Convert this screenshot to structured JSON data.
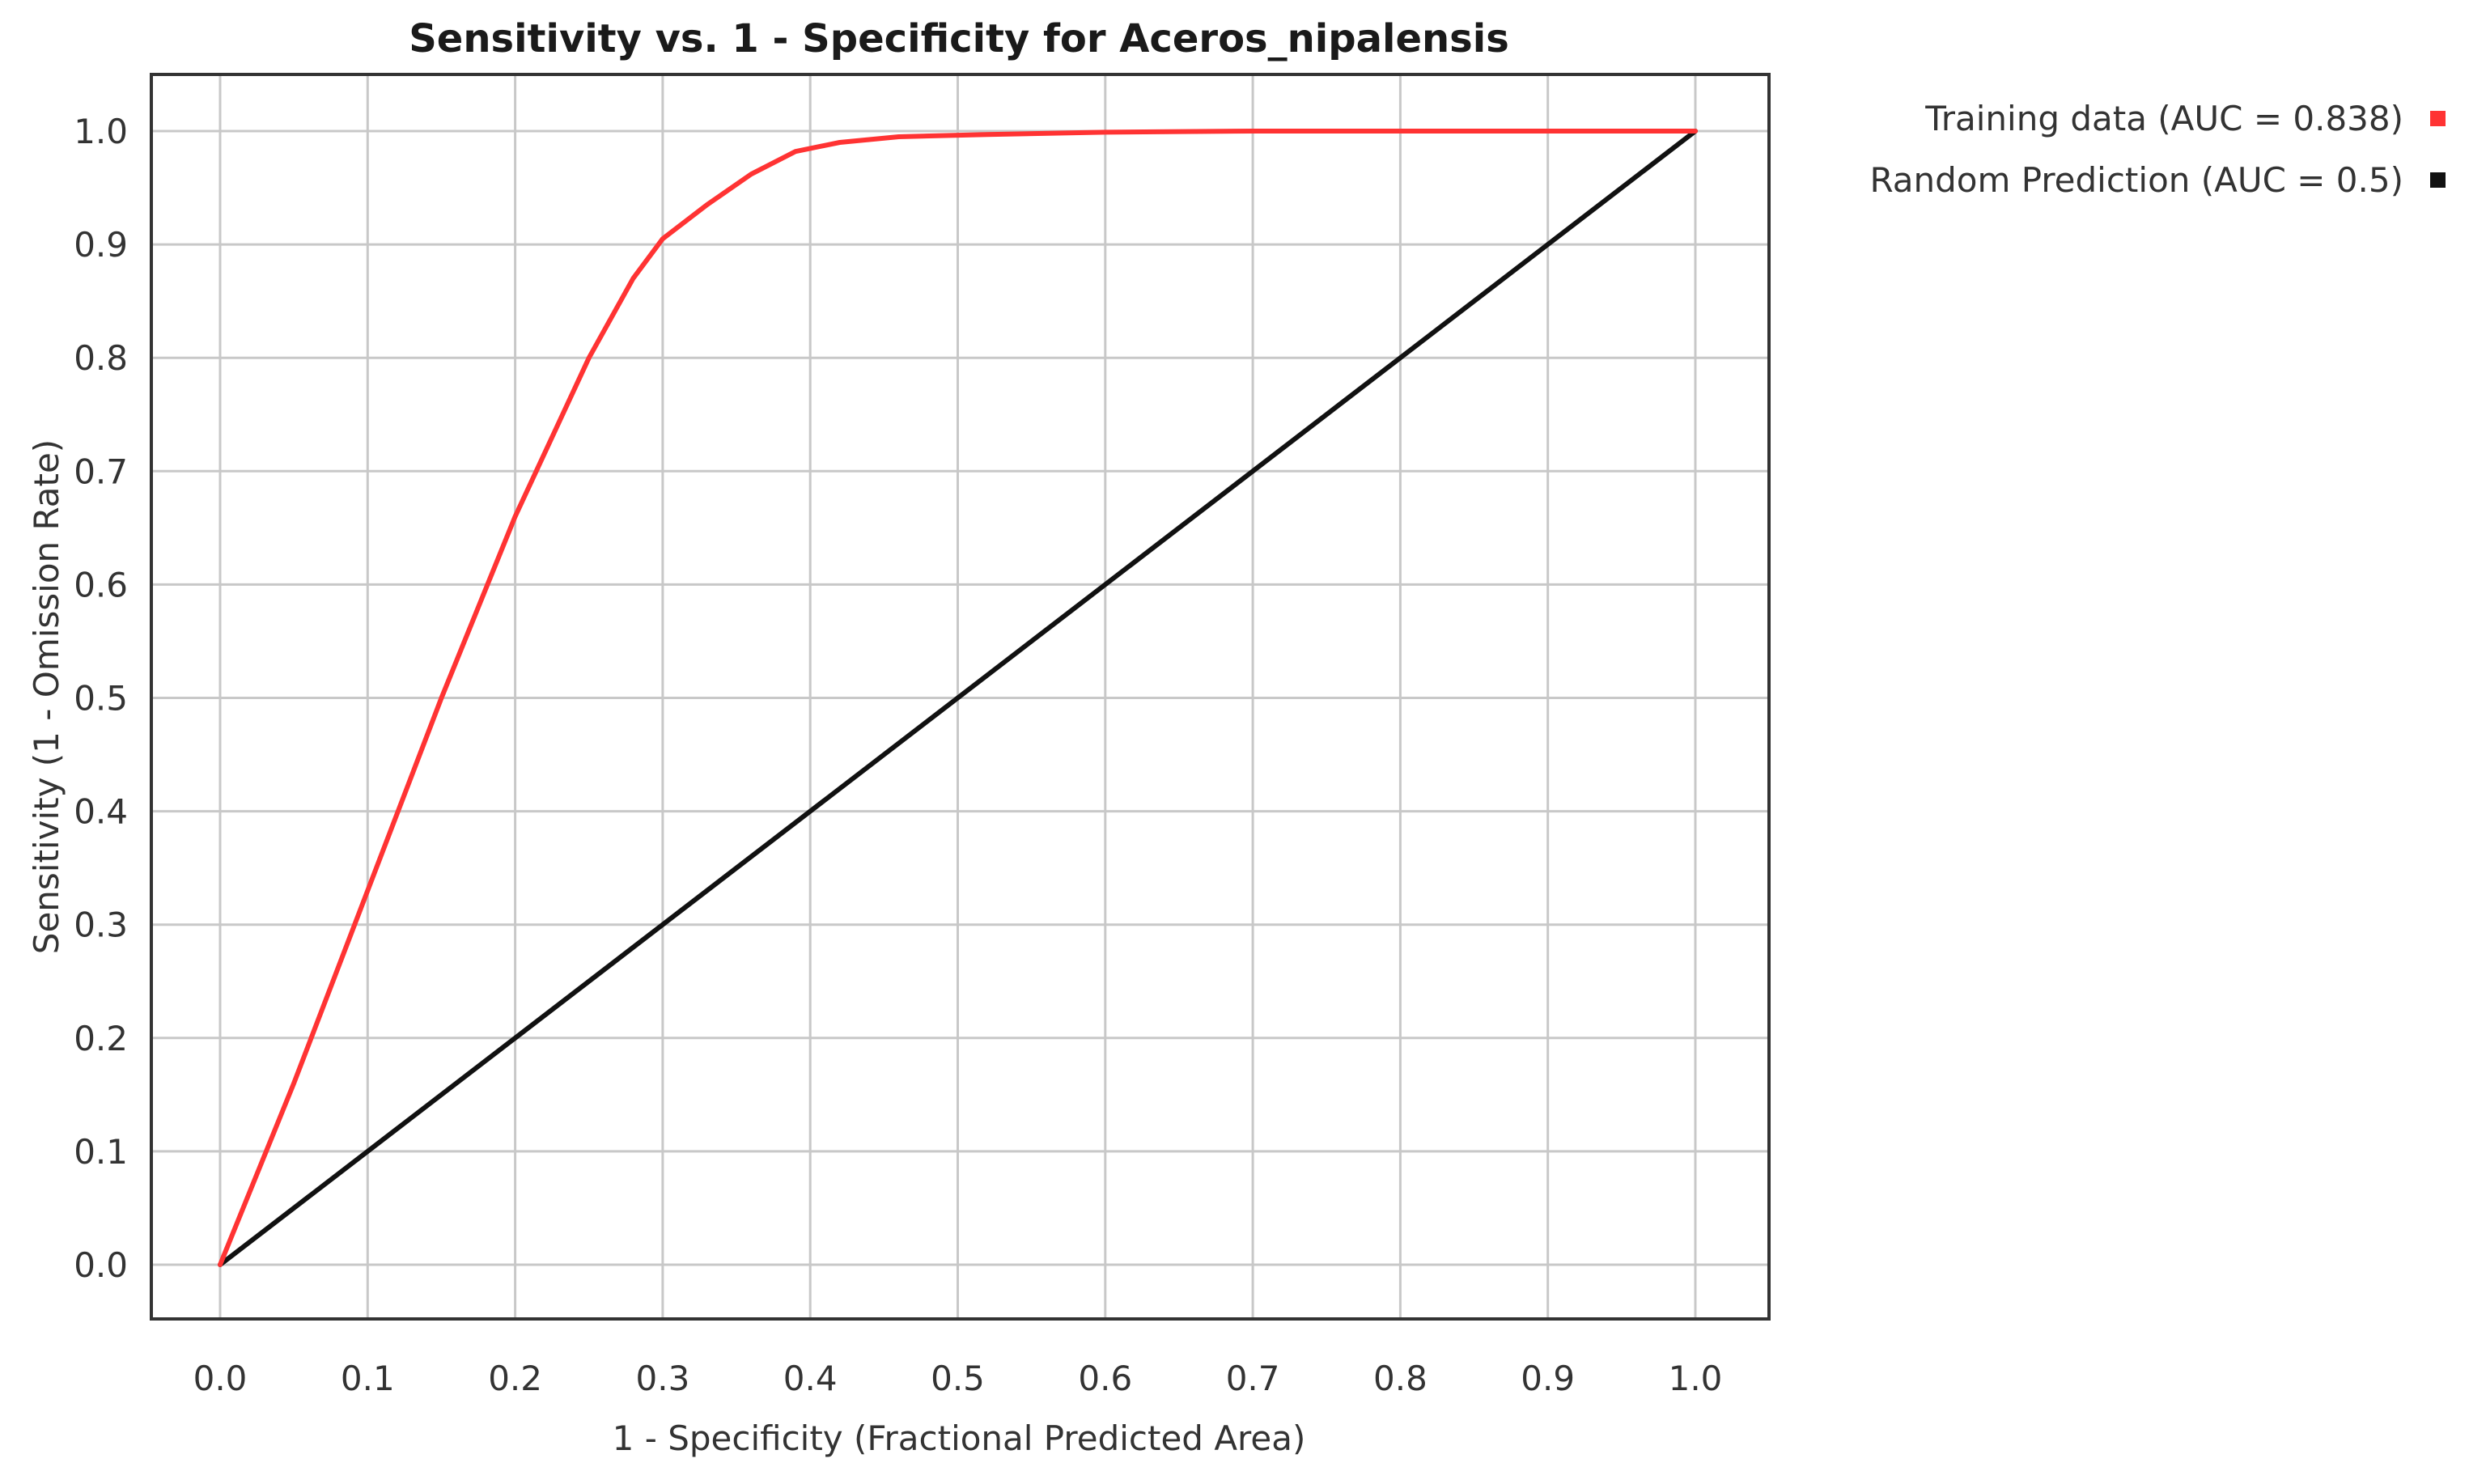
{
  "chart_data": {
    "type": "line",
    "title": "Sensitivity vs. 1 - Specificity for Aceros_nipalensis",
    "xlabel": "1 - Specificity  (Fractional Predicted Area)",
    "ylabel": "Sensitivity  (1 - Omission Rate)",
    "xlim": [
      0.0,
      1.0
    ],
    "ylim": [
      0.0,
      1.0
    ],
    "grid": true,
    "legend_position": "top-right, outside plot",
    "x_ticks": [
      "0.0",
      "0.1",
      "0.2",
      "0.3",
      "0.4",
      "0.5",
      "0.6",
      "0.7",
      "0.8",
      "0.9",
      "1.0"
    ],
    "y_ticks": [
      "0.0",
      "0.1",
      "0.2",
      "0.3",
      "0.4",
      "0.5",
      "0.6",
      "0.7",
      "0.8",
      "0.9",
      "1.0"
    ],
    "series": [
      {
        "name": "Training data (AUC = 0.838)",
        "color": "#ff3333",
        "x": [
          0.0,
          0.05,
          0.1,
          0.15,
          0.2,
          0.25,
          0.28,
          0.3,
          0.33,
          0.36,
          0.39,
          0.42,
          0.46,
          0.52,
          0.6,
          0.7,
          0.8,
          0.9,
          1.0
        ],
        "y": [
          0.0,
          0.16,
          0.33,
          0.5,
          0.66,
          0.8,
          0.87,
          0.905,
          0.935,
          0.962,
          0.982,
          0.99,
          0.995,
          0.997,
          0.999,
          1.0,
          1.0,
          1.0,
          1.0
        ]
      },
      {
        "name": "Random Prediction (AUC = 0.5)",
        "color": "#111111",
        "x": [
          0.0,
          1.0
        ],
        "y": [
          0.0,
          1.0
        ]
      }
    ]
  }
}
